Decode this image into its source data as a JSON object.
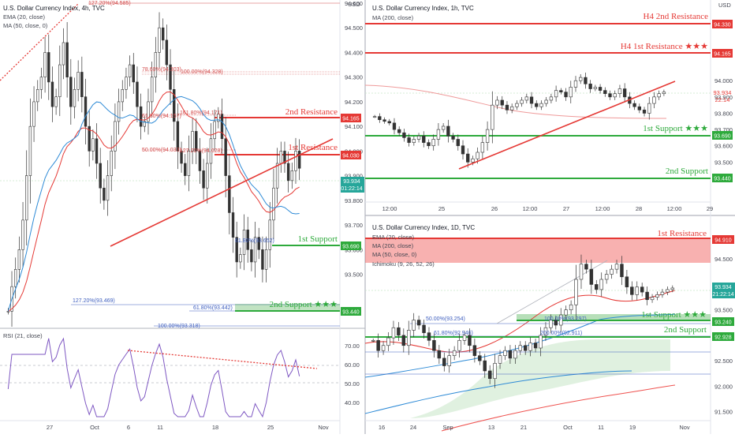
{
  "charts": {
    "h4": {
      "title": "U.S. Dollar Currency Index, 4h, TVC",
      "indicators": [
        "EMA (20, close)",
        "MA (50, close, 0)"
      ],
      "price_tags": {
        "resist2": "94.165",
        "resist1": "94.030",
        "last": "93.934",
        "countdown": "01:22:14",
        "support1": "93.690",
        "support2": "93.440"
      },
      "levels": {
        "resist2": "2nd Resistance",
        "resist1": "1st Resistance",
        "support1": "1st Support",
        "support2": "2nd Support ★★★"
      },
      "fibs": [
        "127.20%(94.585)",
        "78.60%(94.303)",
        "100.00%(94.328)",
        "61.80%(94.157)",
        "161.80%(94.171)",
        "50.00%(94.033)",
        "127.20%(94.028)",
        "61.80%(93.652)",
        "127.20%(93.469)",
        "61.80%(93.442)",
        "100.00%(93.318)"
      ],
      "usd": "USD",
      "x_labels": [
        "27",
        "Oct",
        "6",
        "11",
        "18",
        "25",
        "Nov"
      ],
      "rsi_title": "RSI (21, close)",
      "rsi_labels": [
        "70.00",
        "60.00",
        "50.00",
        "40.00"
      ]
    },
    "h1": {
      "title": "U.S. Dollar Currency Index, 1h, TVC",
      "indicators": [
        "MA (200, close)"
      ],
      "price_tags": {
        "resist2": "94.330",
        "resist1": "94.165",
        "last": "93.934",
        "countdown": "22:14",
        "support1": "93.690",
        "support2": "93.440"
      },
      "levels": {
        "resist2": "H4 2nd Resistance",
        "resist1": "H4 1st Resistance ★★★",
        "support1": "1st Support ★★★",
        "support2": "2nd Support"
      },
      "usd": "USD",
      "x_labels": [
        "12:00",
        "25",
        "26",
        "12:00",
        "27",
        "12:00",
        "28",
        "12:00",
        "29"
      ]
    },
    "d1": {
      "title": "U.S. Dollar Currency Index, 1D, TVC",
      "indicators": [
        "EMA (20, close)",
        "MA (200, close)",
        "MA (50, close, 0)",
        "Ichimoku (9, 26, 52, 26)"
      ],
      "price_tags": {
        "resist1": "94.910",
        "last": "93.934",
        "countdown": "21:22:14",
        "support1": "93.240",
        "support2": "92.928"
      },
      "levels": {
        "resist1": "1st Resistance",
        "support1": "1st Support ★★★",
        "support2": "2nd Support"
      },
      "fibs": [
        "50.00%(93.254)",
        "61.80%(92.946)",
        "100.00%(93.297)",
        "200.00%(92.911)"
      ],
      "x_labels": [
        "16",
        "24",
        "Sep",
        "13",
        "21",
        "Oct",
        "11",
        "19",
        "Nov"
      ]
    }
  },
  "chart_data": [
    {
      "type": "candlestick",
      "title": "U.S. Dollar Currency Index, 4h, TVC",
      "ylim": [
        93.3,
        94.6
      ],
      "y_ticks": [
        94.6,
        94.5,
        94.4,
        94.3,
        94.2,
        94.1,
        94.0,
        93.9,
        93.8,
        93.7,
        93.6,
        93.5
      ],
      "close": [
        93.35,
        93.45,
        93.52,
        93.6,
        93.72,
        93.9,
        94.1,
        94.2,
        94.25,
        94.3,
        94.4,
        94.28,
        94.18,
        94.22,
        94.35,
        94.44,
        94.3,
        94.18,
        94.25,
        94.32,
        94.22,
        94.1,
        94.0,
        94.05,
        93.95,
        93.85,
        93.8,
        93.9,
        94.0,
        94.12,
        94.2,
        94.25,
        94.3,
        94.35,
        94.28,
        94.18,
        94.1,
        94.12,
        94.2,
        94.3,
        94.4,
        94.5,
        94.45,
        94.35,
        94.25,
        94.12,
        94.0,
        93.95,
        93.9,
        94.0,
        94.08,
        94.0,
        93.92,
        93.85,
        93.95,
        94.05,
        94.12,
        94.15,
        94.05,
        93.9,
        93.75,
        93.65,
        93.55,
        93.58,
        93.68,
        93.6,
        93.55,
        93.65,
        93.6,
        93.52,
        93.6,
        93.72,
        93.85,
        93.95,
        94.0,
        93.95,
        93.88,
        93.92,
        94.0,
        93.93
      ],
      "support_level": [
        93.69,
        93.44
      ],
      "resistance_level": [
        94.165,
        94.03
      ]
    },
    {
      "type": "candlestick",
      "title": "U.S. Dollar Currency Index, 1h, TVC",
      "ylim": [
        93.4,
        94.35
      ],
      "y_ticks": [
        94.0,
        93.9,
        93.8,
        93.7,
        93.6,
        93.5,
        93.4
      ],
      "close": [
        93.78,
        93.76,
        93.75,
        93.74,
        93.7,
        93.68,
        93.65,
        93.62,
        93.64,
        93.66,
        93.62,
        93.6,
        93.64,
        93.7,
        93.72,
        93.66,
        93.64,
        93.6,
        93.55,
        93.5,
        93.52,
        93.56,
        93.62,
        93.7,
        93.85,
        93.88,
        93.85,
        93.82,
        93.84,
        93.86,
        93.88,
        93.9,
        93.86,
        93.84,
        93.86,
        93.88,
        93.9,
        93.94,
        93.93,
        93.9,
        93.96,
        94.0,
        94.02,
        93.98,
        93.95,
        93.96,
        93.94,
        93.92,
        93.9,
        93.92,
        93.95,
        93.9,
        93.86,
        93.84,
        93.82,
        93.8,
        93.86,
        93.9,
        93.92,
        93.93
      ],
      "support_level": [
        93.69,
        93.44
      ],
      "resistance_level": [
        94.33,
        94.165
      ]
    },
    {
      "type": "candlestick",
      "title": "U.S. Dollar Currency Index, 1D, TVC",
      "ylim": [
        91.4,
        95.0
      ],
      "y_ticks": [
        94.5,
        94.0,
        93.5,
        93.0,
        92.5,
        92.0,
        91.5
      ],
      "close": [
        92.9,
        92.7,
        92.8,
        92.95,
        93.15,
        93.0,
        92.8,
        93.1,
        93.3,
        93.2,
        93.05,
        92.9,
        92.7,
        92.55,
        92.4,
        92.6,
        92.7,
        92.9,
        93.0,
        92.8,
        92.6,
        92.5,
        92.3,
        92.15,
        92.45,
        92.6,
        92.7,
        92.55,
        92.7,
        92.8,
        92.7,
        92.85,
        92.75,
        93.0,
        93.15,
        93.3,
        93.2,
        93.4,
        93.5,
        93.6,
        94.1,
        94.4,
        94.3,
        94.0,
        93.9,
        94.1,
        94.2,
        94.3,
        94.4,
        94.15,
        93.95,
        93.8,
        93.95,
        93.85,
        93.7,
        93.75,
        93.8,
        93.85,
        93.9,
        93.93
      ],
      "support_level": [
        93.24,
        92.928
      ],
      "resistance_level": [
        94.91
      ]
    }
  ]
}
